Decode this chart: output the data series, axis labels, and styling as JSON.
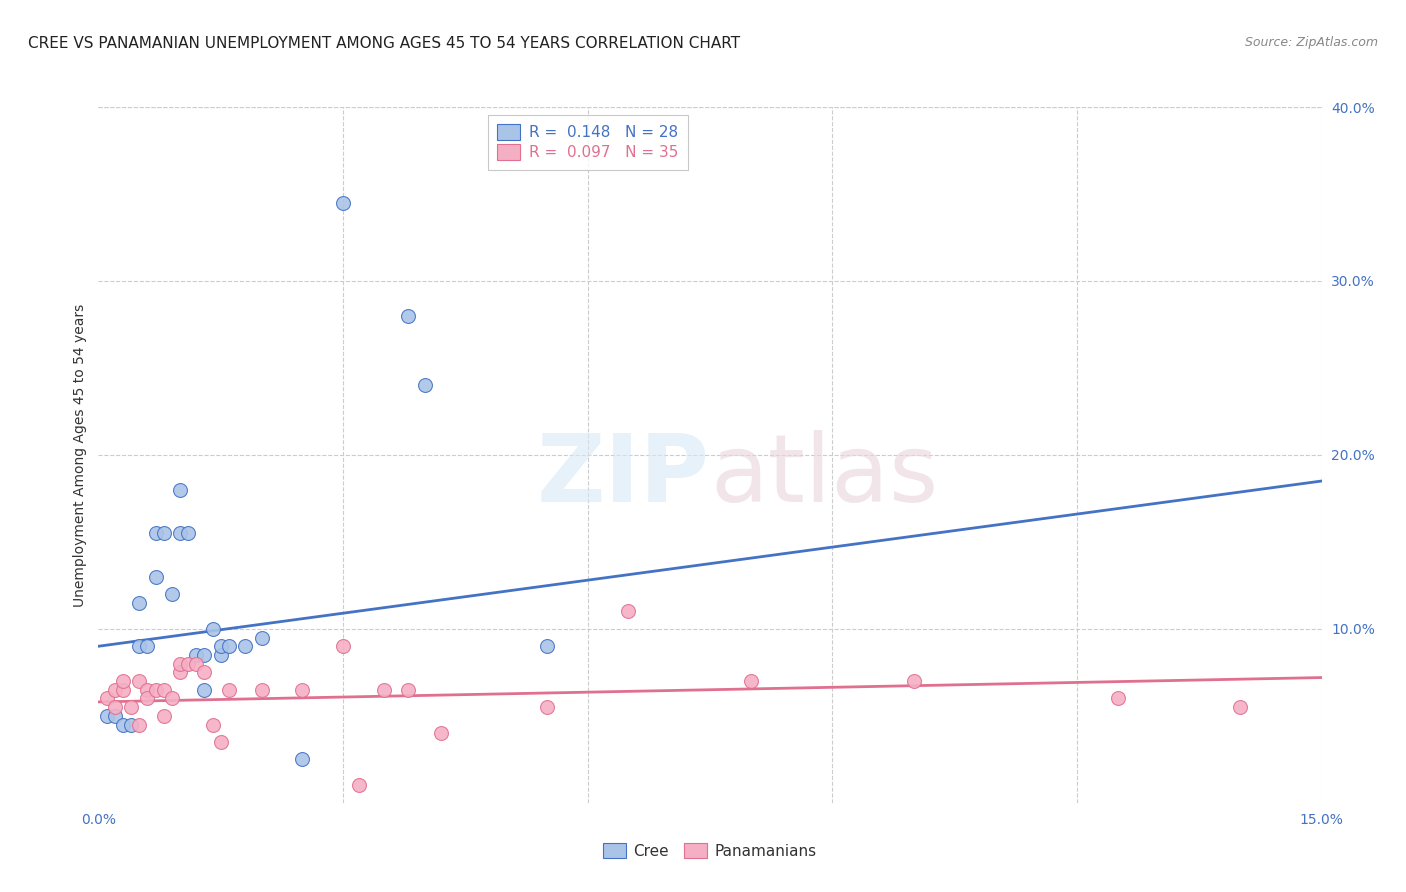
{
  "title": "CREE VS PANAMANIAN UNEMPLOYMENT AMONG AGES 45 TO 54 YEARS CORRELATION CHART",
  "source": "Source: ZipAtlas.com",
  "ylabel": "Unemployment Among Ages 45 to 54 years",
  "xlim": [
    0.0,
    0.15
  ],
  "ylim": [
    -0.02,
    0.42
  ],
  "plot_ylim": [
    0.0,
    0.4
  ],
  "xticks": [
    0.0,
    0.03,
    0.06,
    0.09,
    0.12,
    0.15
  ],
  "xticklabels": [
    "0.0%",
    "",
    "",
    "",
    "",
    "15.0%"
  ],
  "yticks_right": [
    0.1,
    0.2,
    0.3,
    0.4
  ],
  "yticklabels_right": [
    "10.0%",
    "20.0%",
    "30.0%",
    "40.0%"
  ],
  "grid_yticks": [
    0.1,
    0.2,
    0.3,
    0.4
  ],
  "grid_xticks": [
    0.03,
    0.06,
    0.09,
    0.12,
    0.15
  ],
  "cree_R": 0.148,
  "cree_N": 28,
  "pan_R": 0.097,
  "pan_N": 35,
  "cree_color": "#aac4e8",
  "pan_color": "#f5afc5",
  "cree_line_color": "#4472c4",
  "pan_line_color": "#e07090",
  "cree_x": [
    0.001,
    0.002,
    0.003,
    0.004,
    0.005,
    0.005,
    0.006,
    0.007,
    0.007,
    0.008,
    0.009,
    0.01,
    0.01,
    0.011,
    0.012,
    0.013,
    0.013,
    0.014,
    0.015,
    0.015,
    0.016,
    0.018,
    0.02,
    0.025,
    0.03,
    0.038,
    0.04,
    0.055
  ],
  "cree_y": [
    0.05,
    0.05,
    0.045,
    0.045,
    0.09,
    0.115,
    0.09,
    0.155,
    0.13,
    0.155,
    0.12,
    0.155,
    0.18,
    0.155,
    0.085,
    0.065,
    0.085,
    0.1,
    0.085,
    0.09,
    0.09,
    0.09,
    0.095,
    0.025,
    0.345,
    0.28,
    0.24,
    0.09
  ],
  "pan_x": [
    0.001,
    0.002,
    0.002,
    0.003,
    0.003,
    0.004,
    0.005,
    0.005,
    0.006,
    0.006,
    0.007,
    0.008,
    0.008,
    0.009,
    0.01,
    0.01,
    0.011,
    0.012,
    0.013,
    0.014,
    0.015,
    0.016,
    0.02,
    0.025,
    0.03,
    0.032,
    0.035,
    0.038,
    0.042,
    0.055,
    0.065,
    0.08,
    0.1,
    0.125,
    0.14
  ],
  "pan_y": [
    0.06,
    0.065,
    0.055,
    0.065,
    0.07,
    0.055,
    0.07,
    0.045,
    0.065,
    0.06,
    0.065,
    0.05,
    0.065,
    0.06,
    0.075,
    0.08,
    0.08,
    0.08,
    0.075,
    0.045,
    0.035,
    0.065,
    0.065,
    0.065,
    0.09,
    0.01,
    0.065,
    0.065,
    0.04,
    0.055,
    0.11,
    0.07,
    0.07,
    0.06,
    0.055
  ],
  "cree_line_x": [
    0.0,
    0.15
  ],
  "cree_line_y": [
    0.09,
    0.185
  ],
  "pan_line_x": [
    0.0,
    0.15
  ],
  "pan_line_y": [
    0.058,
    0.072
  ],
  "background_color": "#ffffff",
  "grid_color": "#cccccc",
  "title_fontsize": 11,
  "axis_label_fontsize": 10,
  "tick_fontsize": 10,
  "legend_fontsize": 11,
  "marker_size": 100
}
